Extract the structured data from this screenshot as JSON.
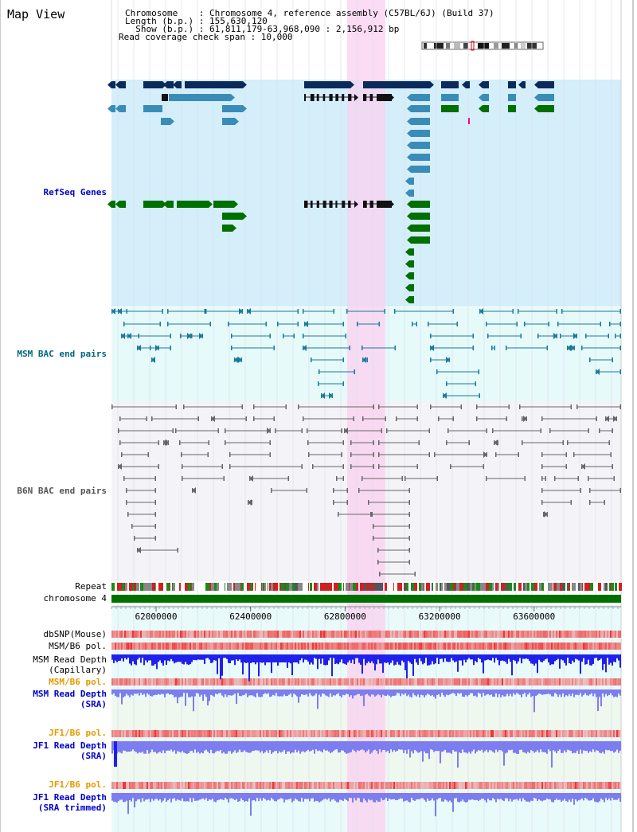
{
  "page": {
    "title": "Map View"
  },
  "info": {
    "line1": "Chromosome    : Chromosome 4, reference assembly (C57BL/6J) (Build 37)",
    "line2": "Length (b.p.) : 155,630,120",
    "line3": "  Show (b.p.) : 61,811,179-63,968,090 : 2,156,912 bp",
    "line4": "Read coverage check span : 10,000"
  },
  "tracks": {
    "refseq": {
      "label": "RefSeq Genes",
      "color": "#0000cc"
    },
    "msm_bac": {
      "label": "MSM BAC end pairs",
      "color": "#006680"
    },
    "b6n_bac": {
      "label": "B6N BAC end pairs",
      "color": "#555555"
    },
    "repeat": {
      "label": "Repeat",
      "color": "#000000"
    },
    "chromosome": {
      "label": "chromosome 4",
      "color": "#000000"
    },
    "dbsnp": {
      "label": "dbSNP(Mouse)",
      "color": "#000000"
    },
    "msm_b6_pol_1": {
      "label": "MSM/B6 pol.",
      "color": "#000000"
    },
    "msm_depth_cap": {
      "label1": "MSM Read Depth",
      "label2": "(Capillary)",
      "color": "#000000"
    },
    "msm_b6_pol_2": {
      "label": "MSM/B6 pol.",
      "color": "#e69900"
    },
    "msm_depth_sra": {
      "label1": "MSM Read Depth",
      "label2": "(SRA)",
      "color": "#0000cc"
    },
    "jf1_b6_pol_1": {
      "label": "JF1/B6 pol.",
      "color": "#e69900"
    },
    "jf1_depth_sra": {
      "label1": "JF1 Read Depth",
      "label2": "(SRA)",
      "color": "#0000cc"
    },
    "jf1_b6_pol_2": {
      "label": "JF1/B6 pol.",
      "color": "#e69900"
    },
    "jf1_depth_trim": {
      "label1": "JF1 Read Depth",
      "label2": "(SRA trimmed)",
      "color": "#0000cc"
    }
  },
  "axis": {
    "ticks": [
      "62000000",
      "62400000",
      "62800000",
      "63200000",
      "63600000"
    ]
  },
  "colors": {
    "refseq_bg": "#d4eefa",
    "msm_bg": "#e6fafa",
    "b6n_bg": "#f4f4f8",
    "highlight": "#fbd0f0",
    "gene_navy": "#0a2a5c",
    "gene_blue": "#3a8cb8",
    "gene_green": "#007000",
    "msm_pair": "#1a7a9a",
    "b6n_pair": "#666666",
    "chromosome_bar": "#007000",
    "depth_capillary": "#2020ee",
    "depth_sra": "#7d7def",
    "pol_red": "#ee3333"
  }
}
